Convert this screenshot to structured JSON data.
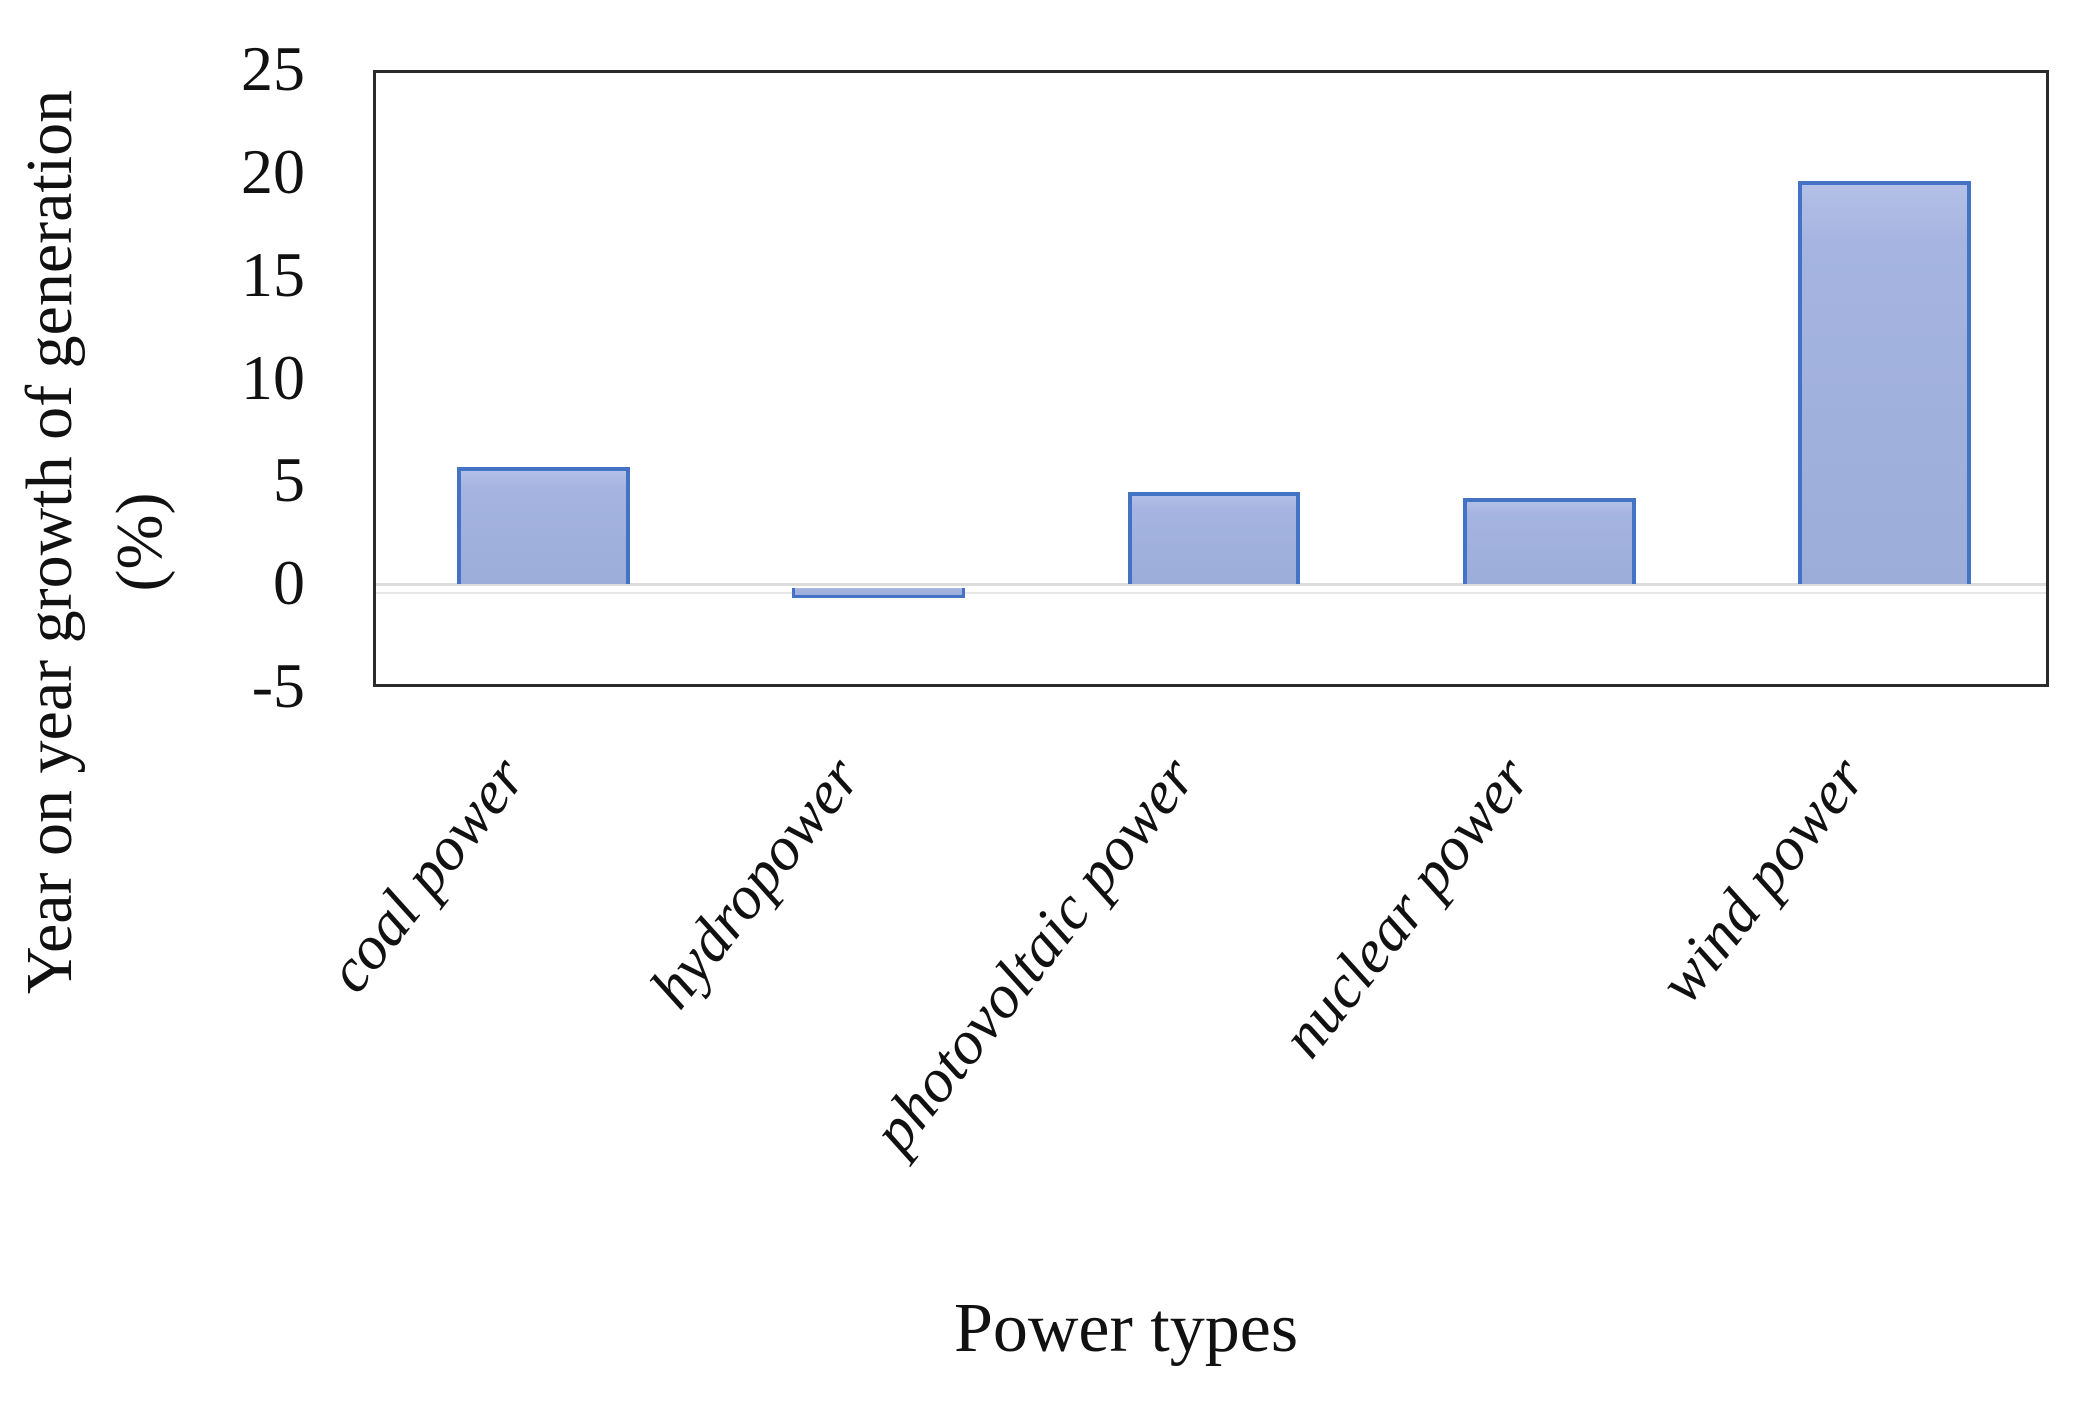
{
  "chart_data": {
    "type": "bar",
    "title": "",
    "xlabel": "Power types",
    "ylabel": "Year on year growth of generation (%)",
    "ylabel_lines": [
      "Year on year growth of generation",
      "(%)"
    ],
    "categories": [
      "coal power",
      "hydropower",
      "photovoltaic power",
      "nuclear power",
      "wind power"
    ],
    "values": [
      5.7,
      -0.5,
      4.5,
      4.2,
      19.6
    ],
    "unit": "%",
    "ylim": [
      -5,
      25
    ],
    "yticks": [
      25,
      20,
      15,
      10,
      5,
      0,
      -5
    ],
    "ytick_step": 5,
    "legend_position": "none",
    "gridlines": "zero-line-only",
    "bar_width_fraction": 0.515,
    "colors": {
      "bar_fill_top": "#B3C0E7",
      "bar_fill_bottom": "#9CADDA",
      "bar_border": "#4472C4",
      "frame": "#2B2B2B",
      "zero_line": "#DCDCDC",
      "text": "#111111"
    }
  }
}
